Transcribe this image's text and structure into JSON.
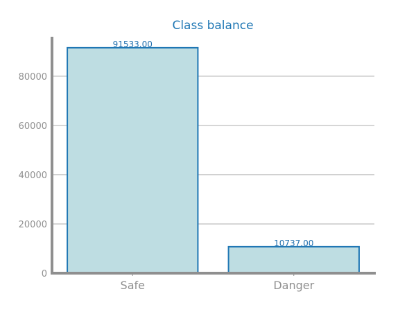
{
  "chart_data": {
    "type": "bar",
    "title": "Class balance",
    "categories": [
      "Safe",
      "Danger"
    ],
    "values": [
      91533,
      10737
    ],
    "data_labels": [
      "91533.00",
      "10737.00"
    ],
    "yticks": [
      0,
      20000,
      40000,
      60000,
      80000
    ],
    "ytick_labels": [
      "0",
      "20000",
      "40000",
      "60000",
      "80000"
    ],
    "ylim": [
      0,
      96000
    ],
    "xlabel": "",
    "ylabel": "",
    "grid": "horizontal",
    "colors": {
      "bar_fill": "#bedde2",
      "bar_edge": "#1f77b4",
      "grid": "#c8c8c8",
      "axis": "#8f8f8f",
      "title": "#1f77b4"
    }
  }
}
